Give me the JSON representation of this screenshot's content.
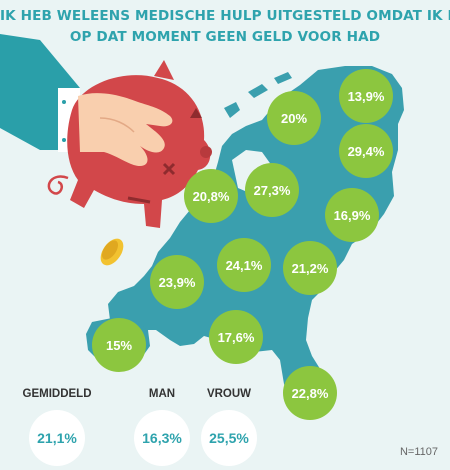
{
  "header": {
    "title_line1": "IK HEB WELEENS MEDISCHE HULP UITGESTELD OMDAT IK ER",
    "title_line2": "OP DAT MOMENT GEEN GELD VOOR HAD"
  },
  "colors": {
    "title": "#2ea3ad",
    "map": "#3a9fae",
    "bubble": "#8cc63f",
    "bubble_text": "#ffffff",
    "piggy": "#d2474a",
    "sleeve": "#2a9fa9",
    "coin": "#f2c230",
    "stat_text": "#2ea3ad"
  },
  "icons": [
    "hand-icon",
    "piggy-bank-icon",
    "coin-icon",
    "map-netherlands"
  ],
  "chart_data": {
    "type": "map",
    "unit": "%",
    "regions": [
      {
        "name": "Groningen",
        "value": 13.9,
        "label": "13,9%"
      },
      {
        "name": "Friesland",
        "value": 20.0,
        "label": "20%"
      },
      {
        "name": "Drenthe",
        "value": 29.4,
        "label": "29,4%"
      },
      {
        "name": "Noord-Holland",
        "value": 20.8,
        "label": "20,8%"
      },
      {
        "name": "Flevoland",
        "value": 27.3,
        "label": "27,3%"
      },
      {
        "name": "Overijssel",
        "value": 16.9,
        "label": "16,9%"
      },
      {
        "name": "Utrecht",
        "value": 24.1,
        "label": "24,1%"
      },
      {
        "name": "Gelderland",
        "value": 21.2,
        "label": "21,2%"
      },
      {
        "name": "Zuid-Holland",
        "value": 23.9,
        "label": "23,9%"
      },
      {
        "name": "Zeeland",
        "value": 15.0,
        "label": "15%"
      },
      {
        "name": "Noord-Brabant",
        "value": 17.6,
        "label": "17,6%"
      },
      {
        "name": "Limburg",
        "value": 22.8,
        "label": "22,8%"
      }
    ]
  },
  "summary": [
    {
      "label": "GEMIDDELD",
      "value": "21,1%"
    },
    {
      "label": "MAN",
      "value": "16,3%"
    },
    {
      "label": "VROUW",
      "value": "25,5%"
    }
  ],
  "footnote": "N=1107"
}
